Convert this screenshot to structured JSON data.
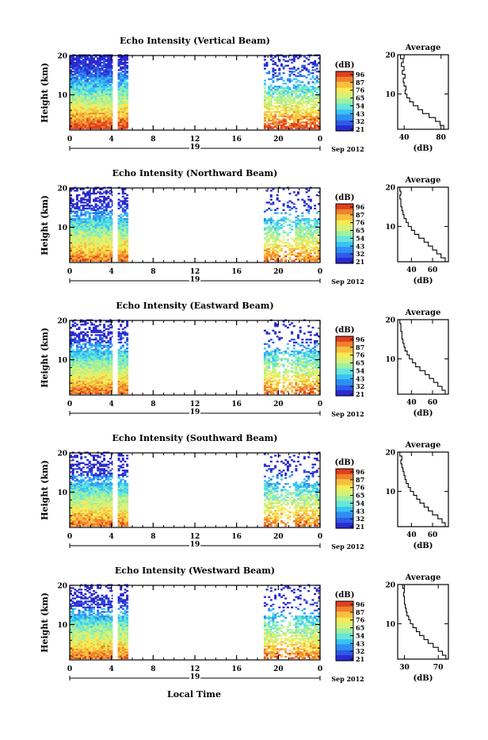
{
  "figure": {
    "xaxis_label": "Local Time",
    "average_title": "Average",
    "average_xlabel": "(dB)",
    "height_label": "Height (km)",
    "date_label": "19",
    "month_label": "Sep 2012",
    "colorbar_label": "(dB)",
    "colorbar_ticks": [
      "96",
      "87",
      "76",
      "65",
      "54",
      "43",
      "32",
      "21"
    ],
    "colormap": [
      "#2a2ad0",
      "#2f5be8",
      "#2f8ff2",
      "#39c3f5",
      "#66e6d9",
      "#9ef0a0",
      "#d4f27a",
      "#f7ea55",
      "#f6bf3e",
      "#f0812c",
      "#e0401f"
    ]
  },
  "chart_data": [
    {
      "type": "heatmap",
      "title": "Echo Intensity (Vertical Beam)",
      "x_ticks": [
        "0",
        "4",
        "8",
        "12",
        "16",
        "20",
        "0"
      ],
      "xlim": [
        0,
        24
      ],
      "y_ticks": [
        "20",
        "10"
      ],
      "ylim": [
        1,
        20
      ],
      "colorbar_range": [
        21,
        96
      ],
      "data_segments": [
        [
          0,
          4.1
        ],
        [
          4.6,
          5.6
        ],
        [
          18.6,
          24
        ]
      ],
      "avg_x_ticks": [
        "40",
        "80"
      ],
      "avg_xlim": [
        33,
        88
      ],
      "avg_profile": [
        [
          83,
          1.5
        ],
        [
          79,
          2.5
        ],
        [
          74,
          3.5
        ],
        [
          67,
          4.5
        ],
        [
          60,
          5.5
        ],
        [
          55,
          6.5
        ],
        [
          50,
          7.5
        ],
        [
          46,
          8.5
        ],
        [
          43,
          9.5
        ],
        [
          41,
          10.5
        ],
        [
          42,
          11.5
        ],
        [
          40,
          12.5
        ],
        [
          39,
          13.5
        ],
        [
          41,
          14.5
        ],
        [
          38,
          15.5
        ],
        [
          40,
          16.5
        ],
        [
          37,
          17.5
        ],
        [
          39,
          18.5
        ],
        [
          36,
          19.5
        ]
      ]
    },
    {
      "type": "heatmap",
      "title": "Echo Intensity (Northward Beam)",
      "x_ticks": [
        "0",
        "4",
        "8",
        "12",
        "16",
        "20",
        "0"
      ],
      "xlim": [
        0,
        24
      ],
      "y_ticks": [
        "20",
        "10"
      ],
      "ylim": [
        1,
        20
      ],
      "colorbar_range": [
        21,
        96
      ],
      "data_segments": [
        [
          0,
          4.1
        ],
        [
          4.6,
          5.6
        ],
        [
          18.6,
          24
        ]
      ],
      "avg_x_ticks": [
        "40",
        "60"
      ],
      "avg_xlim": [
        27,
        75
      ],
      "avg_profile": [
        [
          72,
          1.5
        ],
        [
          68,
          2.5
        ],
        [
          64,
          3.5
        ],
        [
          60,
          4.5
        ],
        [
          56,
          5.5
        ],
        [
          52,
          6.5
        ],
        [
          47,
          7.5
        ],
        [
          43,
          8.5
        ],
        [
          40,
          9.5
        ],
        [
          37,
          10.5
        ],
        [
          35,
          11.5
        ],
        [
          33,
          12.5
        ],
        [
          32,
          13.5
        ],
        [
          31,
          14.5
        ],
        [
          30,
          15.5
        ],
        [
          30,
          16.5
        ],
        [
          29,
          17.5
        ],
        [
          30,
          18.5
        ],
        [
          29,
          19.5
        ]
      ]
    },
    {
      "type": "heatmap",
      "title": "Echo Intensity (Eastward Beam)",
      "x_ticks": [
        "0",
        "4",
        "8",
        "12",
        "16",
        "20",
        "0"
      ],
      "xlim": [
        0,
        24
      ],
      "y_ticks": [
        "20",
        "10"
      ],
      "ylim": [
        1,
        20
      ],
      "colorbar_range": [
        21,
        96
      ],
      "data_segments": [
        [
          0,
          4.1
        ],
        [
          4.6,
          5.6
        ],
        [
          18.6,
          24
        ]
      ],
      "avg_x_ticks": [
        "40",
        "60"
      ],
      "avg_xlim": [
        27,
        75
      ],
      "avg_profile": [
        [
          72,
          1.5
        ],
        [
          69,
          2.5
        ],
        [
          65,
          3.5
        ],
        [
          61,
          4.5
        ],
        [
          57,
          5.5
        ],
        [
          53,
          6.5
        ],
        [
          48,
          7.5
        ],
        [
          44,
          8.5
        ],
        [
          41,
          9.5
        ],
        [
          38,
          10.5
        ],
        [
          36,
          11.5
        ],
        [
          34,
          12.5
        ],
        [
          33,
          13.5
        ],
        [
          32,
          14.5
        ],
        [
          31,
          15.5
        ],
        [
          31,
          16.5
        ],
        [
          30,
          17.5
        ],
        [
          30,
          18.5
        ],
        [
          29,
          19.5
        ]
      ]
    },
    {
      "type": "heatmap",
      "title": "Echo Intensity (Southward Beam)",
      "x_ticks": [
        "0",
        "4",
        "8",
        "12",
        "16",
        "20",
        "0"
      ],
      "xlim": [
        0,
        24
      ],
      "y_ticks": [
        "20",
        "10"
      ],
      "ylim": [
        1,
        20
      ],
      "colorbar_range": [
        21,
        96
      ],
      "data_segments": [
        [
          0,
          4.1
        ],
        [
          4.6,
          5.6
        ],
        [
          18.6,
          24
        ]
      ],
      "avg_x_ticks": [
        "40",
        "60"
      ],
      "avg_xlim": [
        27,
        75
      ],
      "avg_profile": [
        [
          72,
          1.5
        ],
        [
          69,
          2.5
        ],
        [
          65,
          3.5
        ],
        [
          60,
          4.5
        ],
        [
          56,
          5.5
        ],
        [
          52,
          6.5
        ],
        [
          48,
          7.5
        ],
        [
          45,
          8.5
        ],
        [
          42,
          9.5
        ],
        [
          39,
          10.5
        ],
        [
          37,
          11.5
        ],
        [
          35,
          12.5
        ],
        [
          34,
          13.5
        ],
        [
          33,
          14.5
        ],
        [
          32,
          15.5
        ],
        [
          31,
          16.5
        ],
        [
          30,
          17.5
        ],
        [
          31,
          18.5
        ],
        [
          29,
          19.5
        ]
      ]
    },
    {
      "type": "heatmap",
      "title": "Echo Intensity (Westward Beam)",
      "x_ticks": [
        "0",
        "4",
        "8",
        "12",
        "16",
        "20",
        "0"
      ],
      "xlim": [
        0,
        24
      ],
      "y_ticks": [
        "20",
        "10"
      ],
      "ylim": [
        1,
        20
      ],
      "colorbar_range": [
        21,
        96
      ],
      "data_segments": [
        [
          0,
          4.1
        ],
        [
          4.6,
          5.6
        ],
        [
          18.6,
          24
        ]
      ],
      "avg_x_ticks": [
        "30",
        "70"
      ],
      "avg_xlim": [
        22,
        82
      ],
      "avg_profile": [
        [
          79,
          1.5
        ],
        [
          75,
          2.5
        ],
        [
          70,
          3.5
        ],
        [
          64,
          4.5
        ],
        [
          58,
          5.5
        ],
        [
          53,
          6.5
        ],
        [
          48,
          7.5
        ],
        [
          44,
          8.5
        ],
        [
          40,
          9.5
        ],
        [
          37,
          10.5
        ],
        [
          35,
          11.5
        ],
        [
          33,
          12.5
        ],
        [
          32,
          13.5
        ],
        [
          31,
          14.5
        ],
        [
          30,
          15.5
        ],
        [
          30,
          16.5
        ],
        [
          29,
          17.5
        ],
        [
          30,
          18.5
        ],
        [
          28,
          19.5
        ]
      ]
    }
  ]
}
